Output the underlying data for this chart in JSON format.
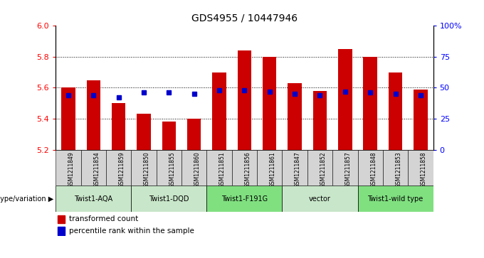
{
  "title": "GDS4955 / 10447946",
  "samples": [
    "GSM1211849",
    "GSM1211854",
    "GSM1211859",
    "GSM1211850",
    "GSM1211855",
    "GSM1211860",
    "GSM1211851",
    "GSM1211856",
    "GSM1211861",
    "GSM1211847",
    "GSM1211852",
    "GSM1211857",
    "GSM1211848",
    "GSM1211853",
    "GSM1211858"
  ],
  "red_values": [
    5.6,
    5.65,
    5.5,
    5.43,
    5.38,
    5.4,
    5.7,
    5.84,
    5.8,
    5.63,
    5.58,
    5.85,
    5.8,
    5.7,
    5.59
  ],
  "blue_percentile": [
    44,
    44,
    42,
    46,
    46,
    45,
    48,
    48,
    47,
    45,
    44,
    47,
    46,
    45,
    44
  ],
  "groups": [
    {
      "label": "Twist1-AQA",
      "indices": [
        0,
        1,
        2
      ],
      "color": "#c8e6c9"
    },
    {
      "label": "Twist1-DQD",
      "indices": [
        3,
        4,
        5
      ],
      "color": "#c8e6c9"
    },
    {
      "label": "Twist1-F191G",
      "indices": [
        6,
        7,
        8
      ],
      "color": "#80e080"
    },
    {
      "label": "vector",
      "indices": [
        9,
        10,
        11
      ],
      "color": "#c8e6c9"
    },
    {
      "label": "Twist1-wild type",
      "indices": [
        12,
        13,
        14
      ],
      "color": "#80e080"
    }
  ],
  "ylim_left": [
    5.2,
    6.0
  ],
  "ylim_right": [
    0,
    100
  ],
  "yticks_left": [
    5.2,
    5.4,
    5.6,
    5.8,
    6.0
  ],
  "yticks_right": [
    0,
    25,
    50,
    75,
    100
  ],
  "ytick_labels_right": [
    "0",
    "25",
    "50",
    "75",
    "100%"
  ],
  "bar_color_red": "#cc0000",
  "bar_color_blue": "#0000cc",
  "label_transformed": "transformed count",
  "label_percentile": "percentile rank within the sample",
  "xlabel_genotype": "genotype/variation",
  "grid_yticks": [
    5.4,
    5.6,
    5.8
  ]
}
